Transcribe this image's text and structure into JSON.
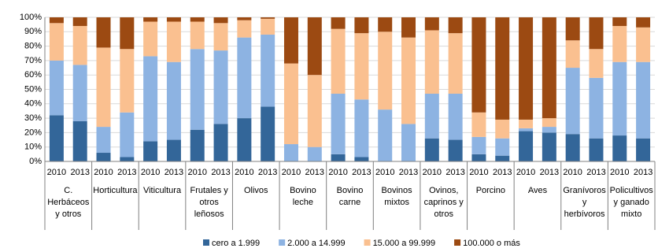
{
  "chart_data": {
    "type": "stacked_bar",
    "categories": [
      "2010",
      "2013",
      "2010",
      "2013",
      "2010",
      "2013",
      "2010",
      "2013",
      "2010",
      "2013",
      "2010",
      "2013",
      "2010",
      "2013",
      "2010",
      "2013",
      "2010",
      "2013",
      "2010",
      "2013",
      "2010",
      "2013",
      "2010",
      "2013",
      "2010",
      "2013"
    ],
    "groups": [
      [
        "C.",
        "Herbáceos",
        "y otros"
      ],
      [
        "Horticultura"
      ],
      [
        "Viticultura"
      ],
      [
        "Frutales y",
        "otros",
        "leñosos"
      ],
      [
        "Olivos"
      ],
      [
        "Bovino",
        "leche"
      ],
      [
        "Bovino",
        "carne"
      ],
      [
        "Bovinos",
        "mixtos"
      ],
      [
        "Ovinos,",
        "caprinos y",
        "otros"
      ],
      [
        "Porcino"
      ],
      [
        "Aves"
      ],
      [
        "Granívoros",
        "y",
        "herbívoros"
      ],
      [
        "Policultivos",
        "y ganado",
        "mixto"
      ]
    ],
    "series": [
      {
        "name": "cero a 1.999",
        "color": "#336699",
        "values": [
          32,
          28,
          6,
          3,
          14,
          15,
          22,
          26,
          30,
          38,
          0,
          0,
          5,
          3,
          0,
          0,
          16,
          15,
          5,
          4,
          21,
          20,
          19,
          16,
          18,
          16
        ]
      },
      {
        "name": "2.000 a 14.999",
        "color": "#8db3e2",
        "values": [
          38,
          39,
          18,
          31,
          59,
          54,
          56,
          51,
          56,
          50,
          12,
          10,
          42,
          40,
          36,
          26,
          31,
          32,
          12,
          12,
          2,
          4,
          46,
          42,
          51,
          53
        ]
      },
      {
        "name": "15.000 a 99.999",
        "color": "#fac090",
        "values": [
          26,
          27,
          55,
          44,
          24,
          28,
          19,
          19,
          12,
          11,
          56,
          50,
          45,
          46,
          54,
          60,
          44,
          42,
          17,
          13,
          6,
          6,
          19,
          20,
          25,
          24
        ]
      },
      {
        "name": "100.000 o más",
        "color": "#9c4a12",
        "values": [
          4,
          6,
          21,
          22,
          3,
          3,
          3,
          4,
          2,
          1,
          32,
          40,
          8,
          11,
          10,
          14,
          9,
          11,
          66,
          71,
          71,
          70,
          16,
          22,
          6,
          7
        ]
      }
    ],
    "ylim": [
      0,
      100
    ],
    "yticks": [
      {
        "value": 0,
        "label": "0%"
      },
      {
        "value": 10,
        "label": "10%"
      },
      {
        "value": 20,
        "label": "20%"
      },
      {
        "value": 30,
        "label": "30%"
      },
      {
        "value": 40,
        "label": "40%"
      },
      {
        "value": 50,
        "label": "50%"
      },
      {
        "value": 60,
        "label": "60%"
      },
      {
        "value": 70,
        "label": "70%"
      },
      {
        "value": 80,
        "label": "80%"
      },
      {
        "value": 90,
        "label": "90%"
      },
      {
        "value": 100,
        "label": "100%"
      }
    ],
    "grid": true
  }
}
